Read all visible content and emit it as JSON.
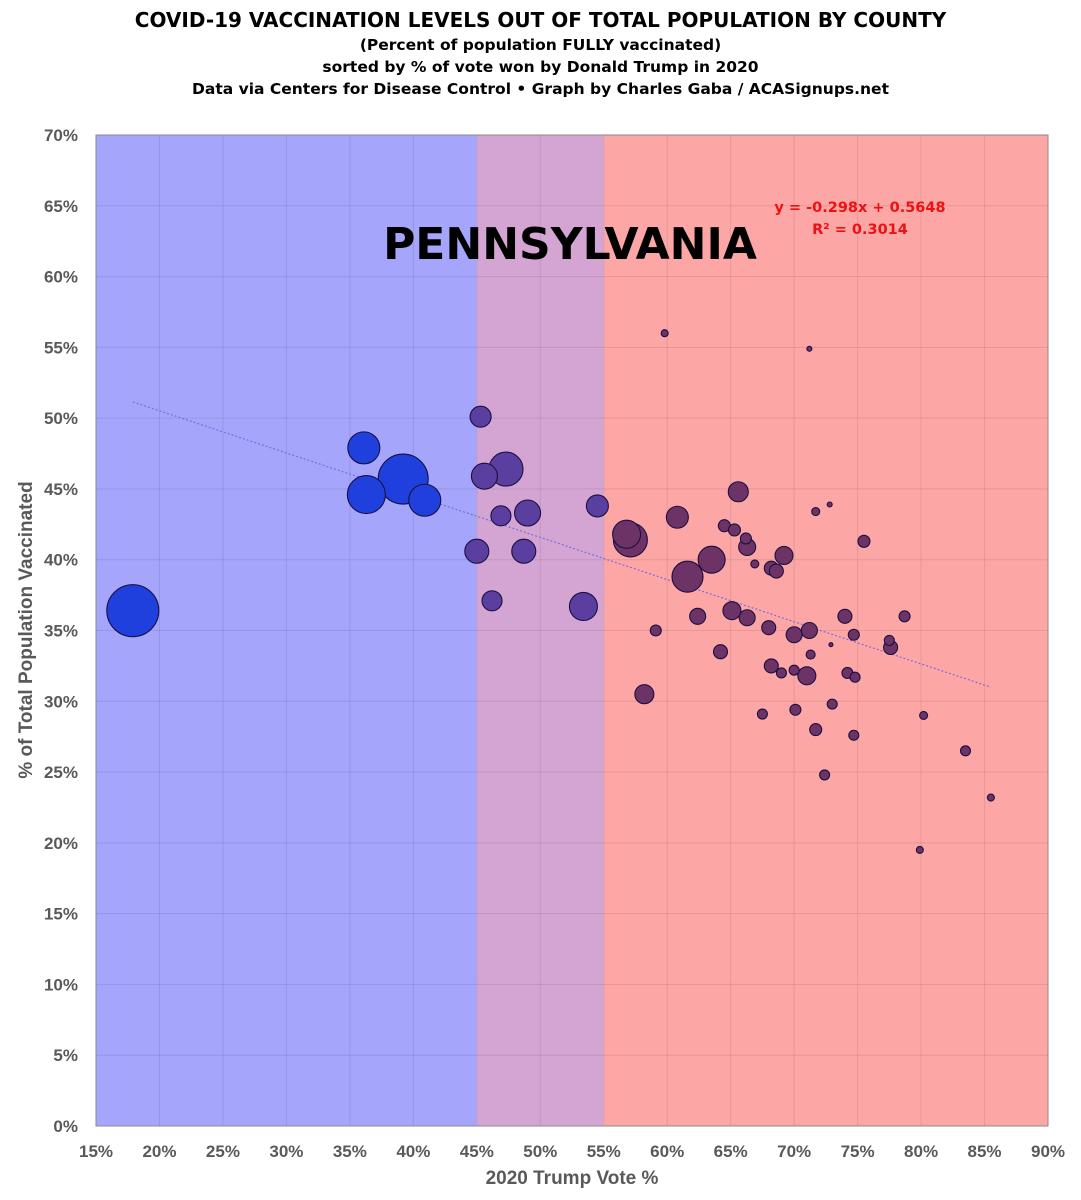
{
  "header": {
    "title": "COVID-19 VACCINATION LEVELS OUT OF TOTAL POPULATION BY COUNTY",
    "subtitle1": "(Percent of population FULLY vaccinated)",
    "subtitle2": "sorted by % of vote won by Donald Trump in 2020",
    "subtitle3": "Data via Centers for Disease Control • Graph by Charles Gaba / ACASignups.net"
  },
  "chart_data": {
    "type": "scatter",
    "title": "COVID-19 VACCINATION LEVELS OUT OF TOTAL POPULATION BY COUNTY",
    "state_label": "PENNSYLVANIA",
    "xlabel": "2020 Trump Vote %",
    "ylabel": "% of Total Population Vaccinated",
    "xlim": [
      15,
      90
    ],
    "ylim": [
      0,
      70
    ],
    "x_ticks": [
      "15%",
      "20%",
      "25%",
      "30%",
      "35%",
      "40%",
      "45%",
      "50%",
      "55%",
      "60%",
      "65%",
      "70%",
      "75%",
      "80%",
      "85%",
      "90%"
    ],
    "y_ticks": [
      "0%",
      "5%",
      "10%",
      "15%",
      "20%",
      "25%",
      "30%",
      "35%",
      "40%",
      "45%",
      "50%",
      "55%",
      "60%",
      "65%",
      "70%"
    ],
    "grid": true,
    "bands": [
      {
        "from": 15,
        "to": 45,
        "color": "#a5a5fb",
        "label": "blue"
      },
      {
        "from": 45,
        "to": 55,
        "color": "#d4a5d3",
        "label": "purple"
      },
      {
        "from": 55,
        "to": 90,
        "color": "#fda6a6",
        "label": "red"
      }
    ],
    "trendline": {
      "equation": "y = -0.298x + 0.5648",
      "r2": "R² = 0.3014",
      "slope": -0.298,
      "intercept": 0.5648,
      "x_from": 17.9,
      "x_to": 85.5
    },
    "series": [
      {
        "name": "Counties",
        "points": [
          {
            "x": 17.9,
            "y": 36.4,
            "size": 26
          },
          {
            "x": 36.3,
            "y": 44.6,
            "size": 19
          },
          {
            "x": 39.2,
            "y": 45.7,
            "size": 25
          },
          {
            "x": 36.1,
            "y": 47.9,
            "size": 16
          },
          {
            "x": 40.9,
            "y": 44.2,
            "size": 16
          },
          {
            "x": 45.3,
            "y": 50.1,
            "size": 10.5
          },
          {
            "x": 47.3,
            "y": 46.4,
            "size": 17
          },
          {
            "x": 45.6,
            "y": 45.9,
            "size": 13
          },
          {
            "x": 45.0,
            "y": 40.6,
            "size": 12
          },
          {
            "x": 46.9,
            "y": 43.1,
            "size": 10
          },
          {
            "x": 49.0,
            "y": 43.3,
            "size": 13
          },
          {
            "x": 48.7,
            "y": 40.6,
            "size": 12
          },
          {
            "x": 46.2,
            "y": 37.1,
            "size": 10
          },
          {
            "x": 53.4,
            "y": 36.7,
            "size": 14
          },
          {
            "x": 54.5,
            "y": 43.8,
            "size": 11
          },
          {
            "x": 56.8,
            "y": 41.8,
            "size": 14
          },
          {
            "x": 57.1,
            "y": 41.4,
            "size": 17
          },
          {
            "x": 61.6,
            "y": 38.8,
            "size": 15.5
          },
          {
            "x": 63.5,
            "y": 40.0,
            "size": 13.5
          },
          {
            "x": 60.8,
            "y": 43.0,
            "size": 11
          },
          {
            "x": 65.6,
            "y": 44.8,
            "size": 10
          },
          {
            "x": 64.5,
            "y": 42.4,
            "size": 6
          },
          {
            "x": 65.3,
            "y": 42.1,
            "size": 6
          },
          {
            "x": 66.3,
            "y": 40.9,
            "size": 8.5
          },
          {
            "x": 66.2,
            "y": 41.5,
            "size": 5.5
          },
          {
            "x": 66.9,
            "y": 39.7,
            "size": 4
          },
          {
            "x": 68.2,
            "y": 39.4,
            "size": 7
          },
          {
            "x": 68.6,
            "y": 39.2,
            "size": 7
          },
          {
            "x": 69.2,
            "y": 40.3,
            "size": 9
          },
          {
            "x": 59.8,
            "y": 56.0,
            "size": 3.5
          },
          {
            "x": 71.2,
            "y": 54.9,
            "size": 2.5
          },
          {
            "x": 71.7,
            "y": 43.4,
            "size": 4
          },
          {
            "x": 72.8,
            "y": 43.9,
            "size": 2.5
          },
          {
            "x": 75.5,
            "y": 41.3,
            "size": 6
          },
          {
            "x": 65.1,
            "y": 36.4,
            "size": 9
          },
          {
            "x": 66.3,
            "y": 35.9,
            "size": 8
          },
          {
            "x": 62.4,
            "y": 36.0,
            "size": 8
          },
          {
            "x": 59.1,
            "y": 35.0,
            "size": 5.5
          },
          {
            "x": 68.0,
            "y": 35.2,
            "size": 7
          },
          {
            "x": 70.0,
            "y": 34.7,
            "size": 8
          },
          {
            "x": 71.2,
            "y": 35.0,
            "size": 8
          },
          {
            "x": 72.9,
            "y": 34.0,
            "size": 2
          },
          {
            "x": 74.0,
            "y": 36.0,
            "size": 7
          },
          {
            "x": 74.7,
            "y": 34.7,
            "size": 5.5
          },
          {
            "x": 78.7,
            "y": 36.0,
            "size": 5.5
          },
          {
            "x": 77.5,
            "y": 34.3,
            "size": 5
          },
          {
            "x": 77.6,
            "y": 33.8,
            "size": 7
          },
          {
            "x": 64.2,
            "y": 33.5,
            "size": 7
          },
          {
            "x": 71.3,
            "y": 33.3,
            "size": 4.5
          },
          {
            "x": 68.2,
            "y": 32.5,
            "size": 7
          },
          {
            "x": 69.0,
            "y": 32.0,
            "size": 5
          },
          {
            "x": 70.0,
            "y": 32.2,
            "size": 5
          },
          {
            "x": 71.0,
            "y": 31.8,
            "size": 9
          },
          {
            "x": 74.2,
            "y": 32.0,
            "size": 5.5
          },
          {
            "x": 74.8,
            "y": 31.7,
            "size": 5
          },
          {
            "x": 58.2,
            "y": 30.5,
            "size": 9.5
          },
          {
            "x": 73.0,
            "y": 29.8,
            "size": 5
          },
          {
            "x": 70.1,
            "y": 29.4,
            "size": 5.5
          },
          {
            "x": 67.5,
            "y": 29.1,
            "size": 5
          },
          {
            "x": 80.2,
            "y": 29.0,
            "size": 4
          },
          {
            "x": 71.7,
            "y": 28.0,
            "size": 6
          },
          {
            "x": 74.7,
            "y": 27.6,
            "size": 5
          },
          {
            "x": 83.5,
            "y": 26.5,
            "size": 5
          },
          {
            "x": 72.4,
            "y": 24.8,
            "size": 5
          },
          {
            "x": 85.5,
            "y": 23.2,
            "size": 3.5
          },
          {
            "x": 79.9,
            "y": 19.5,
            "size": 3.5
          }
        ]
      }
    ]
  }
}
